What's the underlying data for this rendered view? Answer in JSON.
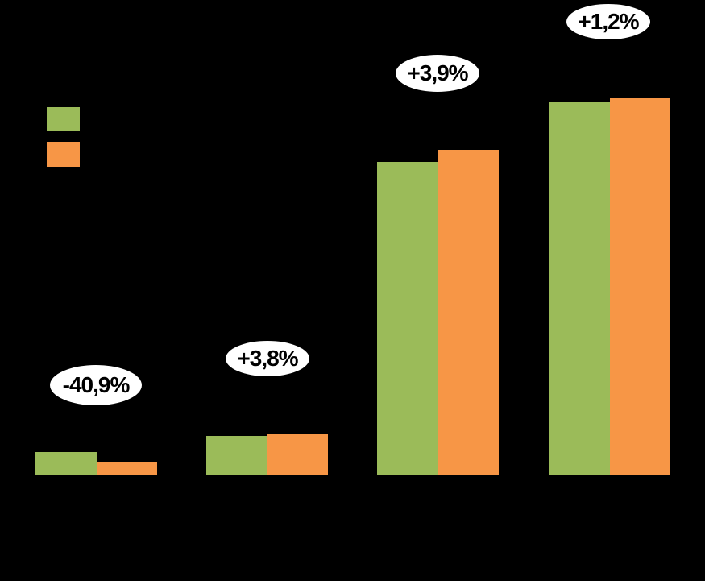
{
  "chart_data": {
    "type": "bar",
    "title": "",
    "categories": [
      "",
      "",
      "",
      ""
    ],
    "series": [
      {
        "name": "green-series",
        "color": "#9BBB59",
        "values": [
          28,
          48,
          388,
          463
        ]
      },
      {
        "name": "orange-series",
        "color": "#F79646",
        "values": [
          16,
          50,
          403,
          468
        ]
      }
    ],
    "value_units": "relative-pixels",
    "ylim": [
      0,
      489
    ],
    "grid": "off",
    "axis_labels_visible": false,
    "legend": {
      "position": "upper-left",
      "swatch_colors": [
        "#9BBB59",
        "#F79646"
      ],
      "labels_visible": false
    },
    "annotations": [
      {
        "group_index": 0,
        "label": "-40,9%"
      },
      {
        "group_index": 1,
        "label": "+3,8%"
      },
      {
        "group_index": 2,
        "label": "+3,9%"
      },
      {
        "group_index": 3,
        "label": "+1,2%"
      }
    ],
    "colors": {
      "background": "#000000",
      "callout_fill": "#FFFFFF",
      "callout_text": "#000000"
    }
  }
}
